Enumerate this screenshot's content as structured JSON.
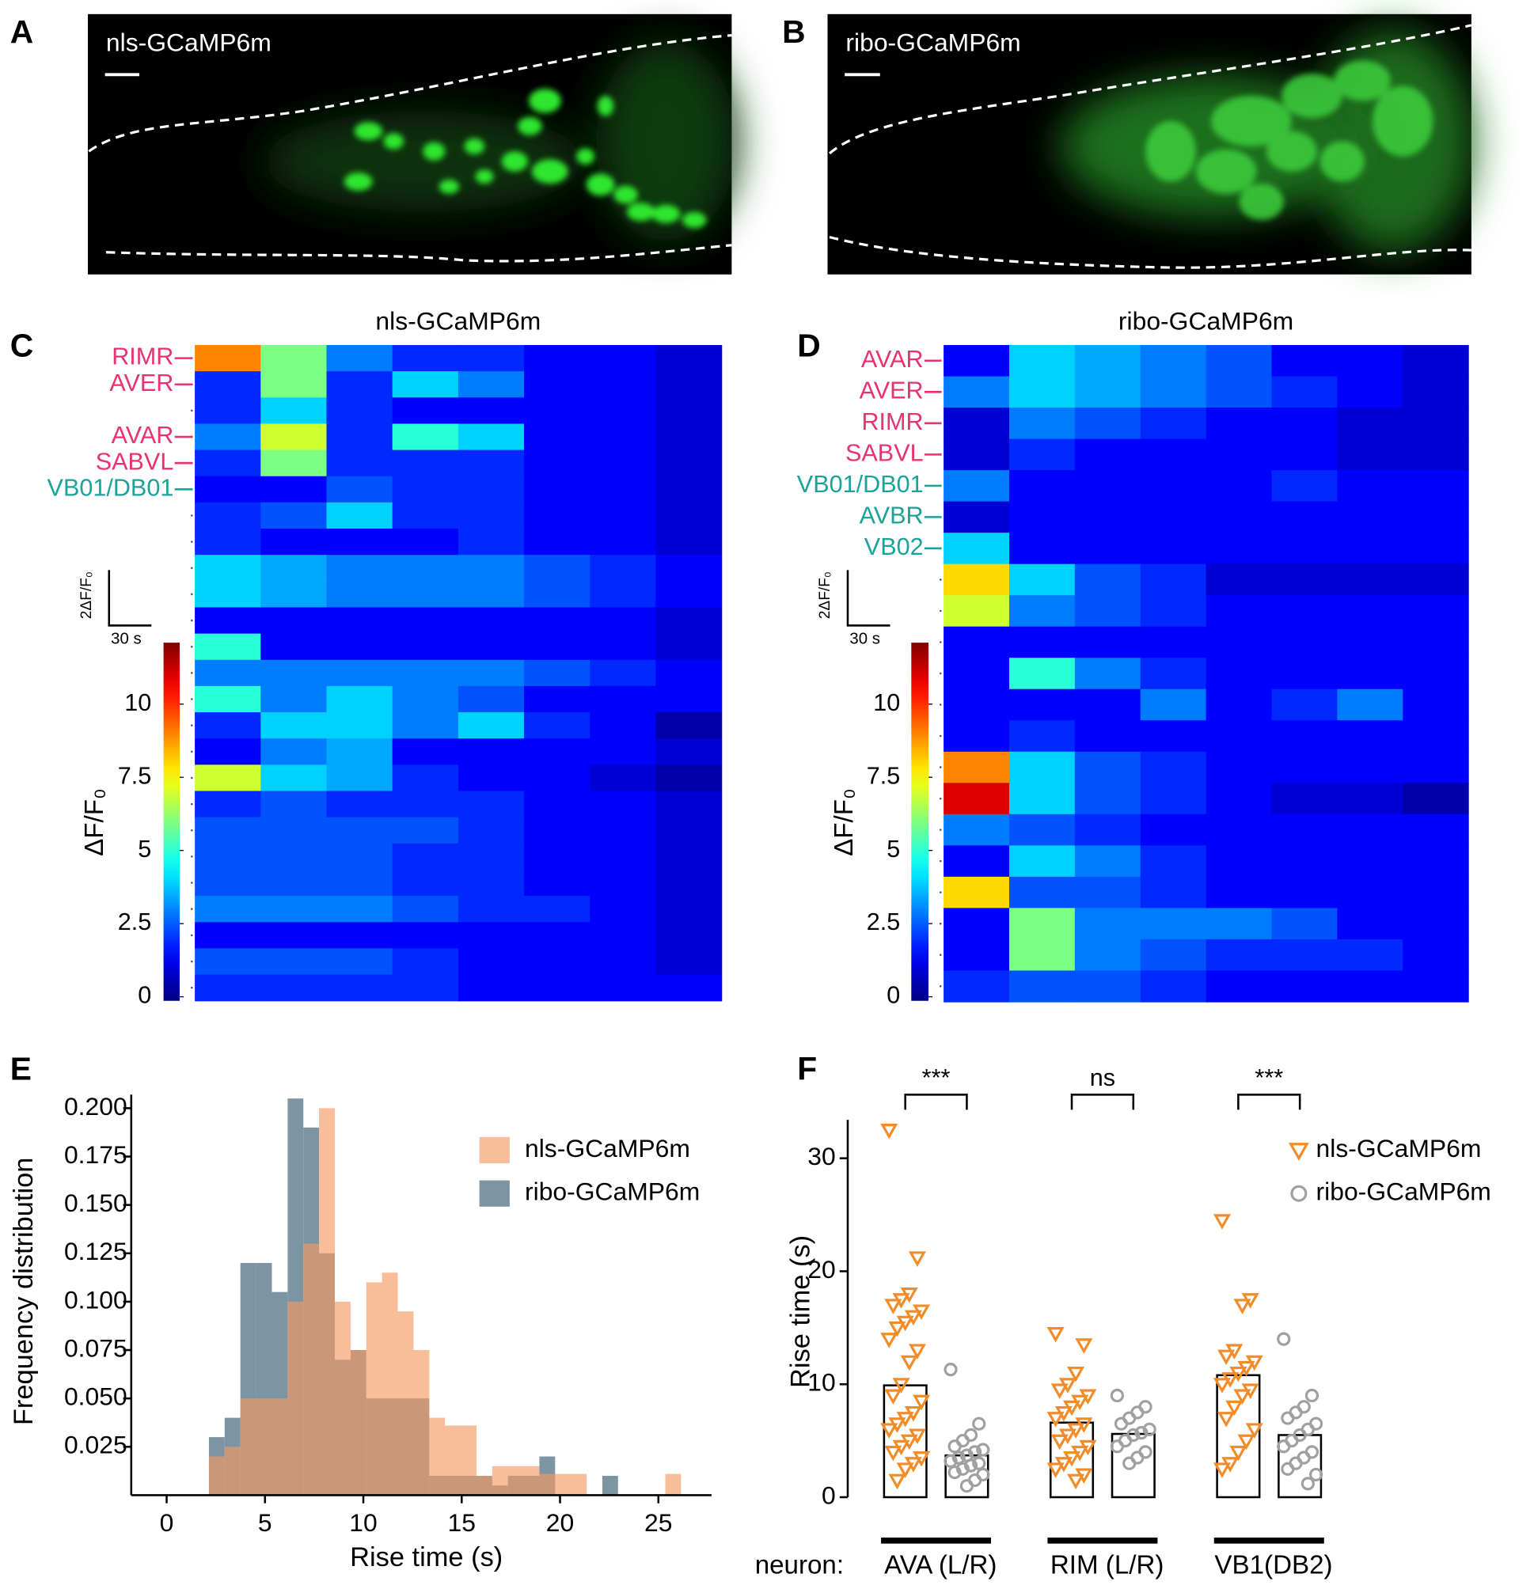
{
  "panels": {
    "A": {
      "label": "A",
      "title": "nls-GCaMP6m"
    },
    "B": {
      "label": "B",
      "title": "ribo-GCaMP6m"
    }
  },
  "chart_data": [
    {
      "type": "heatmap",
      "panel": "C",
      "title": "nls-GCaMP6m",
      "row_labels": [
        "RIMR",
        "AVER",
        null,
        "AVAR",
        "SABVL",
        "VB01/DB01",
        null,
        null,
        null,
        null,
        null,
        null,
        null,
        null,
        null,
        null,
        null,
        null,
        null,
        null,
        null,
        null,
        null,
        null,
        null
      ],
      "row_label_colors": [
        "#e8336e",
        "#e8336e",
        null,
        "#e8336e",
        "#e8336e",
        "#1aa39a",
        null,
        null,
        null,
        null,
        null,
        null,
        null,
        null,
        null,
        null,
        null,
        null,
        null,
        null,
        null,
        null,
        null,
        null,
        null
      ],
      "values": [
        [
          9,
          6,
          3,
          2,
          2,
          1.5,
          1.5,
          1
        ],
        [
          2,
          6,
          2,
          4,
          3,
          1.5,
          1.5,
          1
        ],
        [
          2,
          4,
          2,
          1.5,
          1.5,
          1.5,
          1.5,
          1
        ],
        [
          3,
          7,
          2,
          5,
          4,
          1.5,
          1.5,
          1
        ],
        [
          2,
          6,
          2,
          2,
          2,
          1.5,
          1.5,
          1
        ],
        [
          1.5,
          1.5,
          2.5,
          2,
          2,
          1.5,
          1.5,
          1
        ],
        [
          2,
          2.5,
          4,
          2,
          2,
          1.5,
          1.5,
          1
        ],
        [
          2,
          1.5,
          1.5,
          1.5,
          2,
          1.5,
          1.5,
          1
        ],
        [
          4,
          3.5,
          3,
          3,
          3,
          2.5,
          2,
          1.5
        ],
        [
          4,
          3.5,
          3,
          3,
          3,
          2.5,
          2,
          1.5
        ],
        [
          1.5,
          1.5,
          1.5,
          1.5,
          1.5,
          1.5,
          1.5,
          1
        ],
        [
          5,
          1.5,
          1.5,
          1.5,
          1.5,
          1.5,
          1.5,
          1
        ],
        [
          3,
          3,
          3,
          3,
          3,
          2.5,
          2,
          1.5
        ],
        [
          5,
          3,
          4,
          3,
          2.5,
          1.5,
          1.5,
          1.5
        ],
        [
          2,
          4,
          4,
          3,
          4,
          2,
          1.5,
          0.5
        ],
        [
          1.5,
          3,
          3.5,
          1.5,
          1.5,
          1.5,
          1.5,
          1
        ],
        [
          7,
          4,
          3.5,
          2,
          1.5,
          1.5,
          1,
          0.5
        ],
        [
          2,
          2.5,
          2,
          2,
          2,
          1.5,
          1.5,
          1
        ],
        [
          2.5,
          2.5,
          2.5,
          2.5,
          2,
          1.5,
          1.5,
          1
        ],
        [
          2.5,
          2.5,
          2.5,
          2,
          2,
          1.5,
          1.5,
          1
        ],
        [
          2.5,
          2.5,
          2.5,
          2,
          2,
          1.5,
          1.5,
          1
        ],
        [
          3,
          3,
          3,
          2.5,
          2,
          2,
          1.5,
          1
        ],
        [
          1.5,
          1.5,
          1.5,
          1.5,
          1.5,
          1.5,
          1.5,
          1
        ],
        [
          2.5,
          2.5,
          2.5,
          2,
          1.5,
          1.5,
          1.5,
          1
        ],
        [
          2,
          2,
          2,
          2,
          1.5,
          1.5,
          1.5,
          1.5
        ]
      ],
      "clim": [
        0,
        12.1
      ],
      "colorbar_ticks": [
        0,
        2.5,
        5,
        7.5,
        10
      ],
      "colorbar_label": "ΔF/F₀",
      "scalebar_y": "2ΔF/F₀",
      "scalebar_x": "30 s"
    },
    {
      "type": "heatmap",
      "panel": "D",
      "title": "ribo-GCaMP6m",
      "row_labels": [
        "AVAR",
        "AVER",
        "RIMR",
        "SABVL",
        "VB01/DB01",
        "AVBR",
        "VB02",
        null,
        null,
        null,
        null,
        null,
        null,
        null,
        null,
        null,
        null,
        null,
        null,
        null,
        null
      ],
      "row_label_colors": [
        "#e8336e",
        "#e8336e",
        "#e8336e",
        "#e8336e",
        "#1aa39a",
        "#1aa39a",
        "#1aa39a",
        null,
        null,
        null,
        null,
        null,
        null,
        null,
        null,
        null,
        null,
        null,
        null,
        null,
        null
      ],
      "values": [
        [
          1.5,
          4,
          3.5,
          3,
          2.5,
          1.5,
          1.5,
          1
        ],
        [
          3,
          4,
          3.5,
          3,
          2.5,
          2,
          1.5,
          1
        ],
        [
          1,
          3,
          2.5,
          2,
          1.5,
          1.5,
          1,
          1
        ],
        [
          1,
          2,
          1.5,
          1.5,
          1.5,
          1.5,
          1,
          1
        ],
        [
          3,
          1.5,
          1.5,
          1.5,
          1.5,
          2,
          1.5,
          1.5
        ],
        [
          1,
          1.5,
          1.5,
          1.5,
          1.5,
          1.5,
          1.5,
          1.5
        ],
        [
          4,
          1.5,
          1.5,
          1.5,
          1.5,
          1.5,
          1.5,
          1.5
        ],
        [
          8,
          4,
          2.5,
          2,
          1,
          1,
          1,
          1
        ],
        [
          7,
          3,
          2.5,
          2,
          1.5,
          1.5,
          1.5,
          1.5
        ],
        [
          1.5,
          1.5,
          1.5,
          1.5,
          1.5,
          1.5,
          1.5,
          1.5
        ],
        [
          1.5,
          5,
          3,
          2,
          1.5,
          1.5,
          1.5,
          1.5
        ],
        [
          1.5,
          1.5,
          1.5,
          3,
          1.5,
          2,
          3,
          1.5
        ],
        [
          1.5,
          2,
          1.5,
          1.5,
          1.5,
          1.5,
          1.5,
          1.5
        ],
        [
          9,
          4,
          2.5,
          2,
          1.5,
          1.5,
          1.5,
          1.5
        ],
        [
          11,
          4,
          2.5,
          2,
          1.5,
          1,
          1,
          0.5
        ],
        [
          3,
          2.5,
          2,
          1.5,
          1.5,
          1.5,
          1.5,
          1.5
        ],
        [
          1.5,
          4,
          3,
          2,
          1.5,
          1.5,
          1.5,
          1.5
        ],
        [
          8,
          2.5,
          2.5,
          2,
          1.5,
          1.5,
          1.5,
          1.5
        ],
        [
          1.5,
          6,
          3,
          3,
          3,
          2.5,
          1.5,
          1.5
        ],
        [
          1.5,
          6,
          3,
          2.5,
          2,
          2,
          2,
          1.5
        ],
        [
          2,
          2.5,
          2.5,
          2,
          1.5,
          1.5,
          1.5,
          1.5
        ]
      ],
      "clim": [
        0,
        12.1
      ],
      "colorbar_ticks": [
        0,
        2.5,
        5,
        7.5,
        10
      ],
      "colorbar_label": "ΔF/F₀",
      "scalebar_y": "2ΔF/F₀",
      "scalebar_x": "30 s"
    },
    {
      "type": "histogram",
      "panel": "E",
      "xlabel": "Rise time (s)",
      "ylabel": "Frequency distribution",
      "bins": [
        2.15,
        2.95,
        3.75,
        4.55,
        5.35,
        6.15,
        6.95,
        7.75,
        8.55,
        9.35,
        10.15,
        10.95,
        11.75,
        12.55,
        13.35,
        14.15,
        14.95,
        15.75,
        16.55,
        17.35,
        18.15,
        18.95,
        19.75,
        20.55,
        21.35,
        22.15,
        22.95,
        23.75,
        24.55,
        25.35,
        26.15
      ],
      "series": [
        {
          "name": "ribo-GCaMP6m",
          "color": "#7d95a3",
          "opacity": 1,
          "values": [
            0.03,
            0.04,
            0.12,
            0.12,
            0.105,
            0.205,
            0.19,
            0.125,
            0.07,
            0.075,
            0.05,
            0.05,
            0.05,
            0.05,
            0.01,
            0.01,
            0.01,
            0.01,
            0.005,
            0.01,
            0.01,
            0.02,
            0,
            0,
            0,
            0.01,
            0,
            0,
            0,
            0
          ]
        },
        {
          "name": "nls-GCaMP6m",
          "color": "#f59a63",
          "opacity": 0.65,
          "values": [
            0.02,
            0.025,
            0.05,
            0.05,
            0.05,
            0.1,
            0.13,
            0.2,
            0.1,
            0.075,
            0.11,
            0.115,
            0.095,
            0.075,
            0.04,
            0.036,
            0.036,
            0.01,
            0.015,
            0.015,
            0.015,
            0.011,
            0.011,
            0.011,
            0,
            0,
            0,
            0,
            0,
            0.011
          ]
        }
      ],
      "legend_order": [
        1,
        0
      ],
      "xlim": [
        -1.8,
        27.7
      ],
      "xticks": [
        0,
        5,
        10,
        15,
        20,
        25
      ],
      "ylim": [
        0,
        0.207
      ],
      "yticks": [
        0.025,
        {
          "value": 0.05,
          "label": "0.050"
        },
        0.075,
        {
          "value": 0.1,
          "label": "0.100"
        },
        0.125,
        {
          "value": 0.15,
          "label": "0.150"
        },
        0.175,
        {
          "value": 0.2,
          "label": "0.200"
        }
      ]
    },
    {
      "type": "bar_scatter",
      "panel": "F",
      "categories_label": "neuron:",
      "categories": [
        "AVA (L/R)",
        "RIM (L/R)",
        "VB1(DB2)"
      ],
      "ylabel": "Rise time (s)",
      "ylim": [
        0,
        33.4
      ],
      "yticks": [
        0,
        10,
        20,
        30
      ],
      "significance": [
        "***",
        "ns",
        "***"
      ],
      "series": [
        {
          "name": "nls-GCaMP6m",
          "color": "#f28c28",
          "marker": "triangle-down",
          "values": [
            9.9,
            6.6,
            10.8
          ],
          "points": [
            [
              32.5,
              21.2,
              18,
              17.5,
              17,
              16.5,
              16,
              15.5,
              15,
              14,
              13,
              12,
              10,
              9,
              8.5,
              7.5,
              7,
              6.5,
              6,
              5.5,
              5,
              4.5,
              4,
              3.5,
              3,
              2.5,
              1.5
            ],
            [
              14.5,
              13.5,
              11,
              10,
              9.5,
              9,
              8.5,
              8,
              7.5,
              7,
              6.5,
              6,
              5.5,
              5,
              4.5,
              4,
              3.5,
              3,
              2.5,
              2,
              1.5
            ],
            [
              24.5,
              17.5,
              17,
              13,
              12.5,
              12,
              11.5,
              11,
              10.5,
              10,
              9.5,
              9,
              8,
              7,
              6,
              5,
              4,
              3,
              2.5
            ]
          ]
        },
        {
          "name": "ribo-GCaMP6m",
          "color": "#a0a0a0",
          "marker": "circle",
          "values": [
            3.7,
            5.6,
            5.5
          ],
          "points": [
            [
              11.3,
              6.5,
              5.5,
              5,
              4.5,
              4.2,
              4,
              3.7,
              3.5,
              3.2,
              3,
              2.8,
              2.5,
              2.2,
              2,
              1.5,
              1
            ],
            [
              9,
              8,
              7.5,
              7,
              6.5,
              6,
              5.7,
              5.5,
              5,
              4.5,
              4,
              3.5,
              3
            ],
            [
              14,
              9,
              8,
              7.5,
              7,
              6.5,
              6,
              5.5,
              5,
              4.5,
              4,
              3.5,
              3,
              2.5,
              2,
              1.2
            ]
          ]
        }
      ]
    }
  ]
}
